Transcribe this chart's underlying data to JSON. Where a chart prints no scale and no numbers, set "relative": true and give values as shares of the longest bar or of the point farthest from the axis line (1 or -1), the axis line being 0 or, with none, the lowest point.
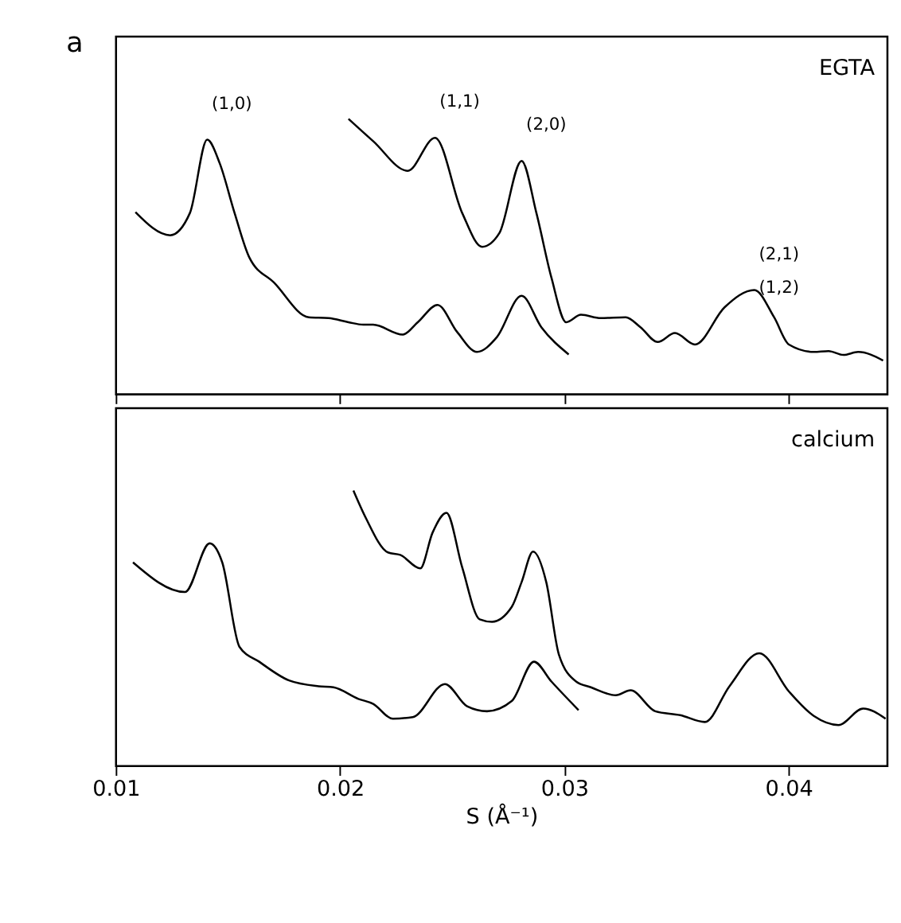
{
  "chart_data": [
    {
      "type": "line",
      "relative": true,
      "xlim": [
        0.01,
        0.0444
      ],
      "xticks": [
        0.01,
        0.02,
        0.03,
        0.04
      ],
      "tick_labels": false,
      "grid": false,
      "line_style": "solid",
      "marker": "none",
      "series": [
        {
          "color": "#000000",
          "x": [
            0.01088,
            0.01243,
            0.01331,
            0.01408,
            0.01464,
            0.0153,
            0.01596,
            0.01706,
            0.01861,
            0.01949,
            0.02038,
            0.02104,
            0.02148,
            0.0228,
            0.02347,
            0.02435,
            0.02523,
            0.02611,
            0.027,
            0.0281,
            0.02898,
            0.0302
          ],
          "values": [
            0.661,
            0.577,
            0.658,
            0.924,
            0.838,
            0.658,
            0.496,
            0.405,
            0.279,
            0.276,
            0.261,
            0.252,
            0.252,
            0.216,
            0.261,
            0.324,
            0.225,
            0.153,
            0.207,
            0.357,
            0.243,
            0.144
          ]
        },
        {
          "color": "#000000",
          "x": [
            0.02038,
            0.02148,
            0.02302,
            0.02424,
            0.02545,
            0.02634,
            0.02711,
            0.0281,
            0.02876,
            0.02943,
            0.03009,
            0.03075,
            0.03163,
            0.03274,
            0.0334,
            0.03417,
            0.03494,
            0.03583,
            0.03715,
            0.03848,
            0.03936,
            0.04002,
            0.04113,
            0.04179,
            0.04245,
            0.04311,
            0.04422
          ],
          "values": [
            1.0,
            0.919,
            0.811,
            0.931,
            0.658,
            0.535,
            0.585,
            0.847,
            0.658,
            0.423,
            0.261,
            0.288,
            0.276,
            0.279,
            0.243,
            0.189,
            0.222,
            0.18,
            0.315,
            0.378,
            0.279,
            0.18,
            0.153,
            0.156,
            0.142,
            0.153,
            0.122
          ]
        }
      ],
      "title": "a",
      "annotations": [
        "EGTA",
        {
          "text": "(1,0)",
          "x": 0.01408,
          "y": 0.924
        },
        {
          "text": "(1,1)",
          "x": 0.02424,
          "y": 0.931
        },
        {
          "text": "(2,0)",
          "x": 0.0281,
          "y": 0.847
        },
        {
          "text": "(2,1)",
          "x": 0.03848,
          "y": 0.378
        },
        {
          "text": "(1,2)",
          "x": 0.03848,
          "y": 0.378
        }
      ]
    },
    {
      "type": "line",
      "relative": true,
      "xlim": [
        0.01,
        0.0444
      ],
      "xticks": [
        0.01,
        0.02,
        0.03,
        0.04
      ],
      "xlabel": "S (Å⁻¹)",
      "grid": false,
      "line_style": "solid",
      "marker": "none",
      "series": [
        {
          "color": "#000000",
          "x": [
            0.01077,
            0.01309,
            0.01419,
            0.01475,
            0.01552,
            0.0164,
            0.01773,
            0.01905,
            0.01971,
            0.02082,
            0.02148,
            0.02236,
            0.02325,
            0.02468,
            0.02567,
            0.02656,
            0.02766,
            0.02865,
            0.02943,
            0.03064
          ],
          "values": [
            0.739,
            0.631,
            0.808,
            0.739,
            0.432,
            0.378,
            0.31,
            0.289,
            0.285,
            0.243,
            0.225,
            0.171,
            0.177,
            0.297,
            0.216,
            0.198,
            0.235,
            0.378,
            0.306,
            0.202
          ]
        },
        {
          "color": "#000000",
          "x": [
            0.0206,
            0.02115,
            0.02214,
            0.02269,
            0.02358,
            0.02413,
            0.02475,
            0.02545,
            0.02623,
            0.02678,
            0.02766,
            0.0281,
            0.02861,
            0.0292,
            0.02976,
            0.03053,
            0.03119,
            0.0323,
            0.03296,
            0.03406,
            0.03517,
            0.03627,
            0.03737,
            0.0387,
            0.04002,
            0.04113,
            0.04223,
            0.04333,
            0.04433
          ],
          "values": [
            1.0,
            0.901,
            0.775,
            0.766,
            0.717,
            0.847,
            0.919,
            0.721,
            0.532,
            0.523,
            0.577,
            0.667,
            0.778,
            0.667,
            0.405,
            0.306,
            0.285,
            0.256,
            0.274,
            0.198,
            0.184,
            0.159,
            0.289,
            0.409,
            0.27,
            0.181,
            0.148,
            0.208,
            0.171
          ]
        }
      ],
      "annotations": [
        "calcium"
      ]
    }
  ]
}
